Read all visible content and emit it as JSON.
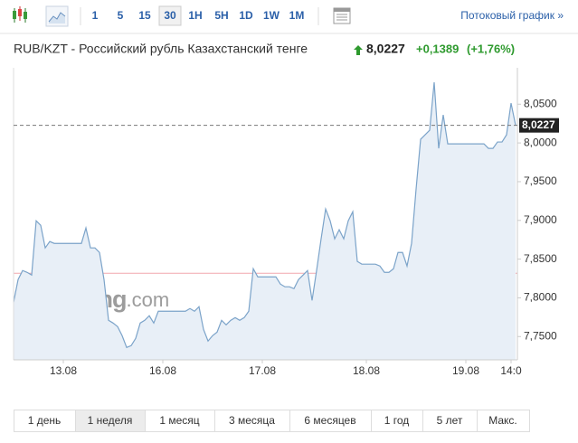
{
  "toolbar": {
    "intervals": [
      "1",
      "5",
      "15",
      "30",
      "1H",
      "5H",
      "1D",
      "1W",
      "1M"
    ],
    "streaming_link": "Потоковый график »"
  },
  "header": {
    "title": "RUB/KZT - Российский рубль Казахстанский тенге",
    "price": "8,0227",
    "change": "+0,1389",
    "change_pct": "(+1,76%)"
  },
  "watermark": {
    "brand": "Investing",
    "domain": ".com"
  },
  "chart_data": {
    "type": "line",
    "categories": [
      null,
      null,
      null,
      null,
      null,
      null,
      null,
      null,
      null,
      null,
      null,
      "13.08",
      null,
      null,
      null,
      null,
      null,
      null,
      null,
      null,
      null,
      null,
      null,
      null,
      null,
      null,
      null,
      null,
      null,
      null,
      null,
      null,
      null,
      "16.08",
      null,
      null,
      null,
      null,
      null,
      null,
      null,
      null,
      null,
      null,
      null,
      null,
      null,
      null,
      null,
      null,
      null,
      null,
      null,
      null,
      null,
      "17.08",
      null,
      null,
      null,
      null,
      null,
      null,
      null,
      null,
      null,
      null,
      null,
      null,
      null,
      null,
      null,
      null,
      null,
      null,
      null,
      null,
      null,
      null,
      "18.08",
      null,
      null,
      null,
      null,
      null,
      null,
      null,
      null,
      null,
      null,
      null,
      null,
      null,
      null,
      null,
      null,
      null,
      null,
      null,
      null,
      null,
      "19.08",
      null,
      null,
      null,
      null,
      null,
      null,
      null,
      null,
      null,
      "14:0",
      null
    ],
    "series": [
      {
        "color": "#7ba3c9",
        "fill": "#e8eff7",
        "values": [
          7.7944,
          7.8236,
          7.8353,
          7.8329,
          7.8294,
          7.8995,
          7.8937,
          7.8645,
          7.8727,
          7.8703,
          7.8703,
          7.8703,
          7.8703,
          7.8703,
          7.8703,
          7.8703,
          7.8902,
          7.8645,
          7.8645,
          7.8586,
          7.8236,
          7.771,
          7.7675,
          7.7629,
          7.7512,
          7.736,
          7.7383,
          7.7477,
          7.7675,
          7.771,
          7.7769,
          7.7675,
          7.7827,
          7.7827,
          7.7827,
          7.7827,
          7.7827,
          7.7827,
          7.7827,
          7.7862,
          7.7827,
          7.7886,
          7.7593,
          7.7442,
          7.7512,
          7.7558,
          7.771,
          7.7652,
          7.771,
          7.7745,
          7.771,
          7.7745,
          7.7827,
          7.8376,
          7.8271,
          7.8271,
          7.8271,
          7.8271,
          7.8271,
          7.8178,
          7.8143,
          7.8143,
          7.8119,
          7.8236,
          7.8294,
          7.8353,
          7.7967,
          7.8353,
          7.8762,
          7.9147,
          7.8995,
          7.8762,
          7.8879,
          7.8762,
          7.8995,
          7.9112,
          7.847,
          7.8435,
          7.8435,
          7.8435,
          7.8435,
          7.8411,
          7.8329,
          7.8329,
          7.8376,
          7.8586,
          7.8586,
          7.8411,
          7.8703,
          7.9404,
          8.0047,
          8.0105,
          8.0164,
          8.0783,
          7.993,
          8.0362,
          7.9988,
          7.9988,
          7.9988,
          7.9988,
          7.9988,
          7.9988,
          7.9988,
          7.9988,
          7.9988,
          7.993,
          7.993,
          8.0012,
          8.0012,
          8.0105,
          8.0514,
          8.0227
        ]
      }
    ],
    "ylim": [
      7.72,
      8.097
    ],
    "yticks": [
      {
        "value": 7.75,
        "label": "7,7500"
      },
      {
        "value": 7.8,
        "label": "7,8000"
      },
      {
        "value": 7.85,
        "label": "7,8500"
      },
      {
        "value": 7.9,
        "label": "7,9000"
      },
      {
        "value": 7.95,
        "label": "7,9500"
      },
      {
        "value": 8.0,
        "label": "8,0000"
      },
      {
        "value": 8.05,
        "label": "8,0500"
      }
    ],
    "last_price": {
      "value": 8.0227,
      "label": "8,0227"
    },
    "baseline": {
      "value": 7.8318,
      "color": "#f2a7ae"
    },
    "grid": false
  },
  "ranges": [
    "1 день",
    "1 неделя",
    "1 месяц",
    "3 месяца",
    "6 месяцев",
    "1 год",
    "5 лет",
    "Макс."
  ]
}
